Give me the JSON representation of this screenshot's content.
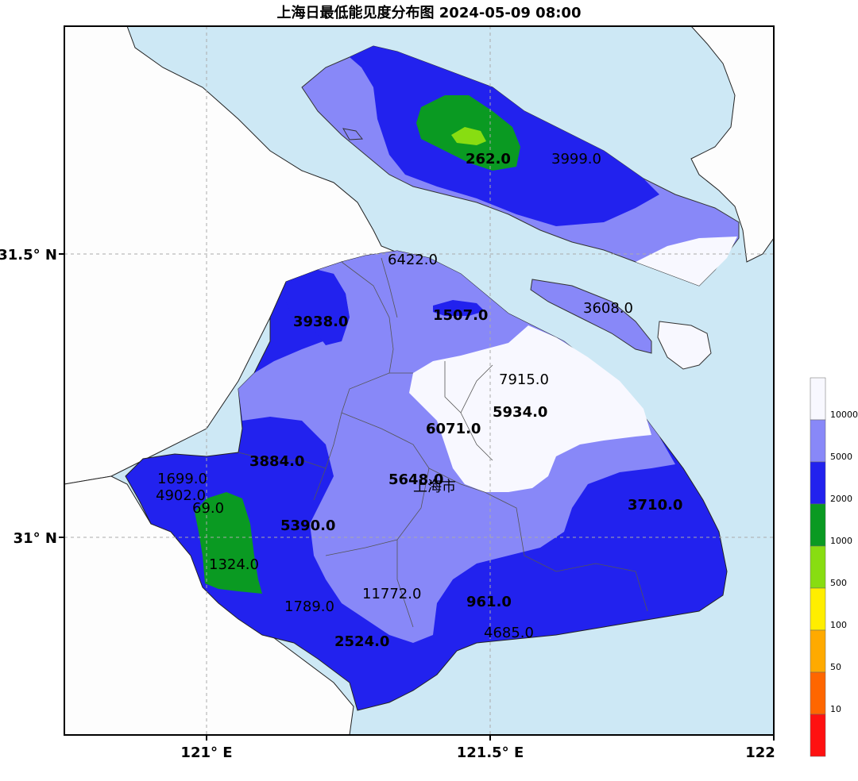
{
  "title": "上海日最低能见度分布图 2024-05-09 08:00",
  "map": {
    "city_label": "上海市",
    "lat_labels": [
      "31.5° N",
      "31° N"
    ],
    "lon_labels": [
      "121° E",
      "121.5° E",
      "122"
    ]
  },
  "stations": [
    {
      "value": "262.0",
      "bold": true
    },
    {
      "value": "3999.0",
      "bold": false
    },
    {
      "value": "6422.0",
      "bold": false
    },
    {
      "value": "3938.0",
      "bold": true
    },
    {
      "value": "1507.0",
      "bold": true
    },
    {
      "value": "3608.0",
      "bold": false
    },
    {
      "value": "7915.0",
      "bold": false
    },
    {
      "value": "5934.0",
      "bold": true
    },
    {
      "value": "6071.0",
      "bold": true
    },
    {
      "value": "3884.0",
      "bold": true
    },
    {
      "value": "5648.0",
      "bold": true
    },
    {
      "value": "1699.0",
      "bold": false
    },
    {
      "value": "4902.0",
      "bold": false
    },
    {
      "value": "69.0",
      "bold": false
    },
    {
      "value": "3710.0",
      "bold": true
    },
    {
      "value": "5390.0",
      "bold": true
    },
    {
      "value": "1324.0",
      "bold": false
    },
    {
      "value": "11772.0",
      "bold": false
    },
    {
      "value": "961.0",
      "bold": true
    },
    {
      "value": "1789.0",
      "bold": false
    },
    {
      "value": "4685.0",
      "bold": false
    },
    {
      "value": "2524.0",
      "bold": true
    }
  ],
  "legend": {
    "labels": [
      "10000",
      "5000",
      "2000",
      "1000",
      "500",
      "100",
      "50",
      "10"
    ],
    "colors": [
      "#f8f8ff",
      "#8888f8",
      "#2222ee",
      "#0a9a22",
      "#88dd11",
      "#ffee00",
      "#ffaa00",
      "#ff6600",
      "#ff1111"
    ]
  }
}
